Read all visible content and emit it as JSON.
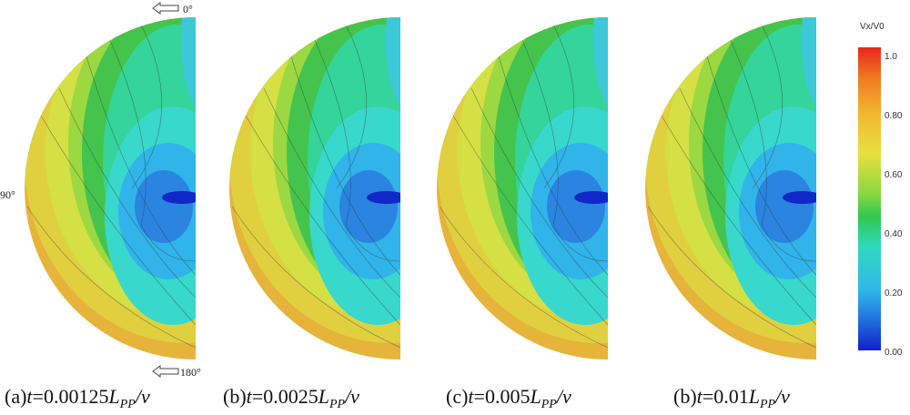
{
  "figure": {
    "angle_labels": {
      "top": "0°",
      "side": "90°",
      "bottom": "180°"
    },
    "colorbar": {
      "title": "Vx/V0",
      "ticks": [
        "1.0",
        "0.80",
        "0.60",
        "0.40",
        "0.20",
        "0.00"
      ]
    },
    "panels": [
      {
        "label": "(a)",
        "t": "t",
        "eq": "=0.00125",
        "L": "L",
        "sub": "PP",
        "tail": "/v"
      },
      {
        "label": "(b)",
        "t": "t",
        "eq": "=0.0025",
        "L": "L",
        "sub": "PP",
        "tail": "/v"
      },
      {
        "label": "(c)",
        "t": "t",
        "eq": "=0.005",
        "L": "L",
        "sub": "PP",
        "tail": "/v"
      },
      {
        "label": "(b)",
        "t": "t",
        "eq": "=0.01",
        "L": "L",
        "sub": "PP",
        "tail": "/v"
      }
    ]
  }
}
